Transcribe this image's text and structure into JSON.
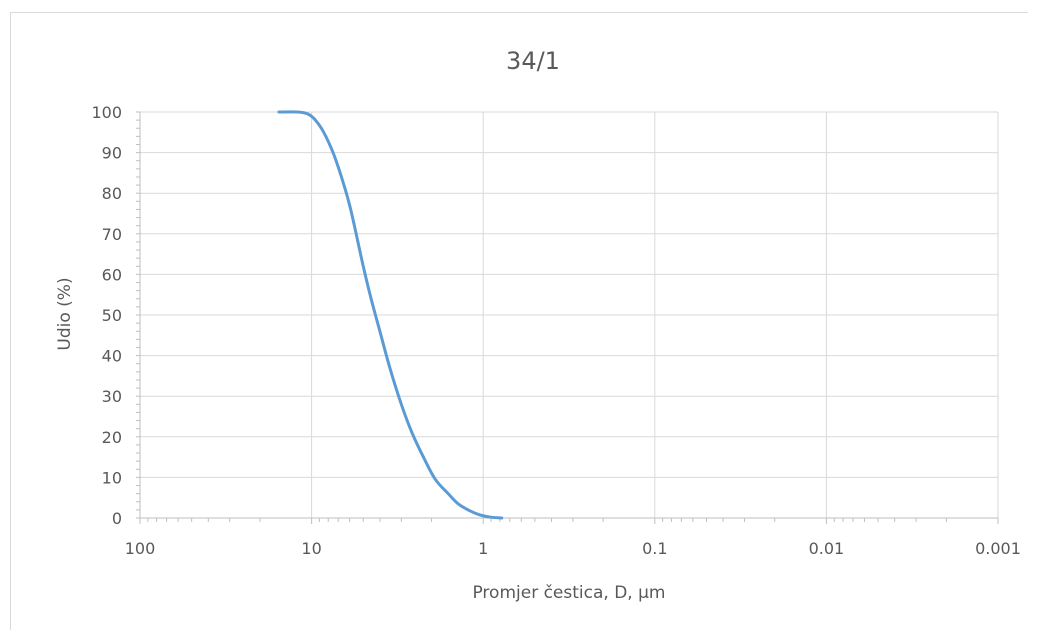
{
  "chart_data": {
    "type": "line",
    "title": "34/1",
    "xlabel": "Promjer čestica, D, μm",
    "ylabel": "Udio (%)",
    "x_scale": "log-reversed",
    "xlim": [
      100,
      0.001
    ],
    "ylim": [
      0,
      100
    ],
    "x_tick_labels": [
      "100",
      "10",
      "1",
      "0.1",
      "0.01",
      "0.001"
    ],
    "y_tick_labels": [
      "0",
      "10",
      "20",
      "30",
      "40",
      "50",
      "60",
      "70",
      "80",
      "90",
      "100"
    ],
    "grid": true,
    "legend": "none",
    "series": [
      {
        "color": "#5b9bd5",
        "x": [
          15.5,
          12,
          10.5,
          9.5,
          8.5,
          7.5,
          6.7,
          6.0,
          5.5,
          5.0,
          4.5,
          4.0,
          3.5,
          3.0,
          2.6,
          2.2,
          1.9,
          1.6,
          1.4,
          1.2,
          1.05,
          0.9,
          0.78
        ],
        "values": [
          100,
          100,
          99.5,
          98,
          95,
          90,
          84,
          77,
          70,
          62,
          54,
          46,
          37,
          28,
          21,
          14.5,
          9.5,
          6,
          3.5,
          1.8,
          0.8,
          0.2,
          0
        ]
      }
    ]
  }
}
